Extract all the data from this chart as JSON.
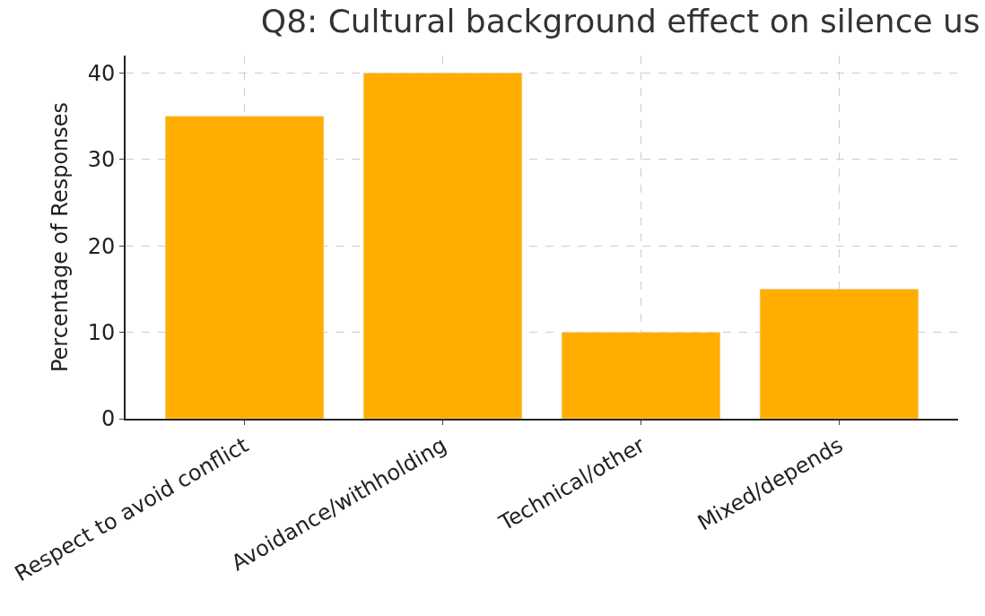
{
  "chart_data": {
    "type": "bar",
    "title": "Q8: Cultural background effect on silence us",
    "ylabel": "Percentage of Responses",
    "categories": [
      "Respect to avoid conflict",
      "Avoidance/withholding",
      "Technical/other",
      "Mixed/depends"
    ],
    "values": [
      35,
      40,
      10,
      15
    ],
    "color": "#ffae00",
    "ylim": [
      0,
      42
    ],
    "yticks": [
      0,
      10,
      20,
      30,
      40
    ],
    "grid": true
  }
}
